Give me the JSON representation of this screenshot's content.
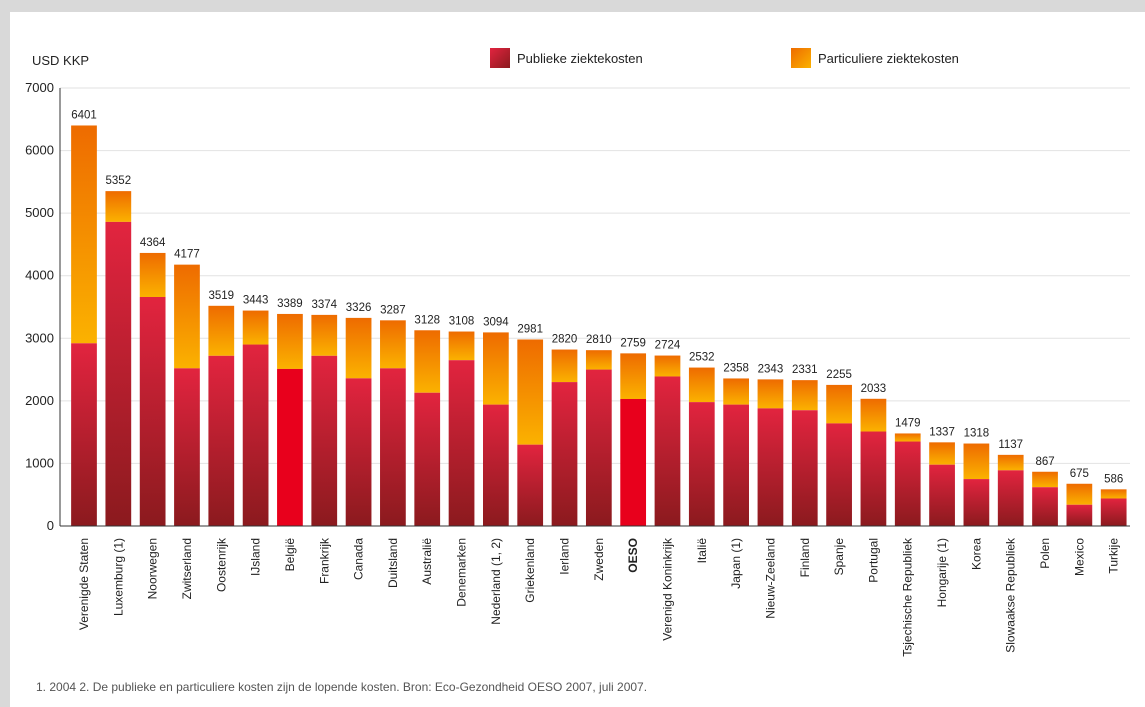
{
  "chart_data": {
    "type": "bar",
    "stacked": true,
    "ylabel": "USD KKP",
    "ylim": [
      0,
      7000
    ],
    "yticks": [
      0,
      1000,
      2000,
      3000,
      4000,
      5000,
      6000,
      7000
    ],
    "grid": true,
    "legend_position": "top",
    "categories": [
      "Verenigde Staten",
      "Luxemburg (1)",
      "Noorwegen",
      "Zwitserland",
      "Oostenrijk",
      "IJsland",
      "België",
      "Frankrijk",
      "Canada",
      "Duitsland",
      "Australië",
      "Denemarken",
      "Nederland (1, 2)",
      "Griekenland",
      "Ierland",
      "Zweden",
      "OESO",
      "Verenigd Koninkrijk",
      "Italië",
      "Japan (1)",
      "Nieuw-Zeeland",
      "Finland",
      "Spanje",
      "Portugal",
      "Tsjechische Republiek",
      "Hongarije (1)",
      "Korea",
      "Slowaakse Republiek",
      "Polen",
      "Mexico",
      "Turkije"
    ],
    "totals": [
      6401,
      5352,
      4364,
      4177,
      3519,
      3443,
      3389,
      3374,
      3326,
      3287,
      3128,
      3108,
      3094,
      2981,
      2820,
      2810,
      2759,
      2724,
      2532,
      2358,
      2343,
      2331,
      2255,
      2033,
      1479,
      1337,
      1318,
      1137,
      867,
      675,
      586
    ],
    "highlight": [
      "België",
      "OESO"
    ],
    "bold_categories": [
      "OESO"
    ],
    "series": [
      {
        "name": "Publieke ziektekosten",
        "color_top": "#e2243f",
        "color_bottom": "#8b1a1e",
        "values": [
          2920,
          4860,
          3660,
          2520,
          2720,
          2900,
          2510,
          2720,
          2360,
          2520,
          2130,
          2650,
          1940,
          1300,
          2300,
          2500,
          2030,
          2390,
          1980,
          1940,
          1880,
          1850,
          1640,
          1510,
          1350,
          980,
          750,
          890,
          620,
          340,
          440
        ]
      },
      {
        "name": "Particuliere ziektekosten",
        "color_top": "#ee6b00",
        "color_bottom": "#fbb200",
        "values": [
          3481,
          492,
          704,
          1657,
          799,
          543,
          879,
          654,
          966,
          767,
          998,
          458,
          1154,
          1681,
          520,
          310,
          729,
          334,
          552,
          418,
          463,
          481,
          615,
          523,
          129,
          357,
          568,
          247,
          247,
          335,
          146
        ]
      }
    ],
    "highlight_color": "#e8001c"
  },
  "footnote": "1. 2004   2. De publieke en particuliere kosten zijn de lopende kosten.  Bron: Eco-Gezondheid OESO 2007, juli 2007."
}
